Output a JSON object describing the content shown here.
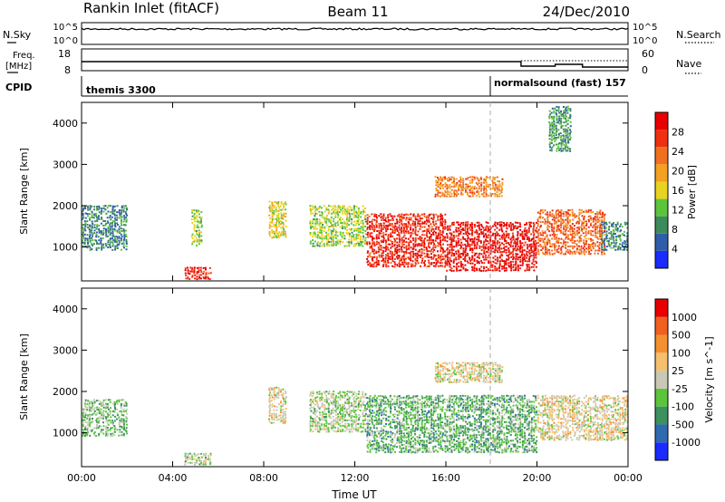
{
  "header": {
    "station": "Rankin Inlet (fitACF)",
    "beam": "Beam 11",
    "date": "24/Dec/2010"
  },
  "strip_labels": {
    "nsky": "N.Sky",
    "nsky_top": "10^5",
    "nsky_bottom": "10^0",
    "nsearch": "N.Search",
    "nsearch_top": "10^5",
    "nsearch_bottom": "10^0",
    "freq": "Freq.",
    "freq_unit": "[MHz]",
    "freq_top": "18",
    "freq_bottom": "8",
    "nave": "Nave",
    "nave_top": "60",
    "nave_bottom": "0",
    "cpid": "CPID",
    "cpid_program_1": "themis 3300",
    "cpid_program_2": "normalsound (fast) 157"
  },
  "axes": {
    "xlabel": "Time UT",
    "ylabel": "Slant Range [km]",
    "xticks": [
      "00:00",
      "04:00",
      "08:00",
      "12:00",
      "16:00",
      "20:00",
      "00:00"
    ],
    "yticks": [
      "1000",
      "2000",
      "3000",
      "4000"
    ]
  },
  "colorbars": {
    "power": {
      "label": "Power [dB]",
      "ticks": [
        "4",
        "8",
        "12",
        "16",
        "20",
        "24",
        "28"
      ],
      "colors": [
        "#1a2bff",
        "#2f5ea8",
        "#3d8a5a",
        "#5bc43c",
        "#e8d320",
        "#f4a020",
        "#f07020",
        "#f03010",
        "#e80000"
      ]
    },
    "velocity": {
      "label": "Velocity [m s^-1]",
      "ticks": [
        "1000",
        "500",
        "100",
        "25",
        "-25",
        "-100",
        "-500",
        "-1000"
      ],
      "colors": [
        "#1a2bff",
        "#2f6ab0",
        "#3d9060",
        "#5bc43c",
        "#c8c8b4",
        "#f4c070",
        "#f49030",
        "#f06020",
        "#e80000"
      ]
    }
  },
  "chart_data": [
    {
      "type": "heatmap",
      "panel": "power",
      "x_range_hours": [
        0,
        24
      ],
      "y_range_km": [
        180,
        4500
      ],
      "colorbar_range_db": [
        0,
        32
      ],
      "regions": [
        {
          "t0": 0.0,
          "t1": 2.0,
          "r0": 900,
          "r1": 2000,
          "level": 8
        },
        {
          "t0": 4.5,
          "t1": 5.7,
          "r0": 200,
          "r1": 500,
          "level": 28
        },
        {
          "t0": 4.8,
          "t1": 5.3,
          "r0": 1000,
          "r1": 1900,
          "level": 14
        },
        {
          "t0": 8.2,
          "t1": 9.0,
          "r0": 1200,
          "r1": 2100,
          "level": 16
        },
        {
          "t0": 10.0,
          "t1": 12.5,
          "r0": 1000,
          "r1": 2000,
          "level": 14
        },
        {
          "t0": 12.5,
          "t1": 16.0,
          "r0": 500,
          "r1": 1800,
          "level": 28
        },
        {
          "t0": 16.0,
          "t1": 20.0,
          "r0": 400,
          "r1": 1600,
          "level": 30
        },
        {
          "t0": 20.0,
          "t1": 23.0,
          "r0": 800,
          "r1": 1900,
          "level": 24
        },
        {
          "t0": 22.8,
          "t1": 24.0,
          "r0": 900,
          "r1": 1600,
          "level": 8
        },
        {
          "t0": 15.5,
          "t1": 18.5,
          "r0": 2200,
          "r1": 2700,
          "level": 22
        },
        {
          "t0": 20.5,
          "t1": 21.5,
          "r0": 3300,
          "r1": 4400,
          "level": 10
        }
      ]
    },
    {
      "type": "heatmap",
      "panel": "velocity",
      "x_range_hours": [
        0,
        24
      ],
      "y_range_km": [
        180,
        4500
      ],
      "colorbar_range_ms": [
        -1000,
        1000
      ],
      "regions": [
        {
          "t0": 0.0,
          "t1": 2.0,
          "r0": 900,
          "r1": 1800,
          "level": -200
        },
        {
          "t0": 4.5,
          "t1": 5.7,
          "r0": 200,
          "r1": 500,
          "level": -100
        },
        {
          "t0": 8.2,
          "t1": 9.0,
          "r0": 1200,
          "r1": 2100,
          "level": 100
        },
        {
          "t0": 10.0,
          "t1": 12.5,
          "r0": 1000,
          "r1": 2000,
          "level": -100
        },
        {
          "t0": 12.5,
          "t1": 20.0,
          "r0": 500,
          "r1": 1900,
          "level": -300
        },
        {
          "t0": 20.0,
          "t1": 24.0,
          "r0": 800,
          "r1": 1900,
          "level": 100
        },
        {
          "t0": 15.5,
          "t1": 18.5,
          "r0": 2200,
          "r1": 2700,
          "level": 100
        }
      ]
    }
  ]
}
